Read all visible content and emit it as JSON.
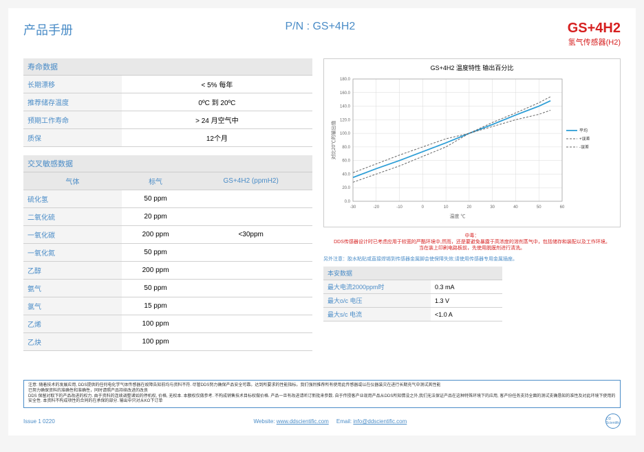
{
  "header": {
    "left": "产品手册",
    "mid": "P/N : GS+4H2",
    "model": "GS+4H2",
    "sub": "氢气传感器(H2)"
  },
  "lifeTable": {
    "title": "寿命数据",
    "rows": [
      {
        "label": "长期漂移",
        "value": "< 5% 每年"
      },
      {
        "label": "推荐储存温度",
        "value": "0ºC 到 20ºC"
      },
      {
        "label": "预期工作寿命",
        "value": "> 24 月空气中"
      },
      {
        "label": "质保",
        "value": "12个月"
      }
    ]
  },
  "crossTable": {
    "title": "交叉敏感数据",
    "headers": [
      "气体",
      "标气",
      "GS+4H2 (ppmH2)"
    ],
    "rows": [
      {
        "gas": "硫化氢",
        "std": "50 ppm",
        "resp": ""
      },
      {
        "gas": "二氧化硫",
        "std": "20 ppm",
        "resp": ""
      },
      {
        "gas": "一氧化碳",
        "std": "200 ppm",
        "resp": "<30ppm"
      },
      {
        "gas": "一氧化氮",
        "std": "50 ppm",
        "resp": ""
      },
      {
        "gas": "乙醇",
        "std": "200 ppm",
        "resp": ""
      },
      {
        "gas": "氨气",
        "std": "50   ppm",
        "resp": ""
      },
      {
        "gas": "氯气",
        "std": "15    ppm",
        "resp": ""
      },
      {
        "gas": "乙烯",
        "std": "100 ppm",
        "resp": ""
      },
      {
        "gas": "乙炔",
        "std": "100   ppm",
        "resp": ""
      }
    ]
  },
  "chart": {
    "title": "GS+4H2 温度特性 输出百分比",
    "xlabel": "温度 ℃",
    "ylabel": "对比20℃的输出值",
    "xlim": [
      -30,
      60
    ],
    "ylim": [
      0,
      180
    ],
    "xtick_step": 10,
    "ytick_step": 20,
    "plot_bg": "#ffffff",
    "grid_color": "#d9d9d9",
    "series": [
      {
        "name": "平均",
        "color": "#2e9ed6",
        "dash": "0",
        "width": 1.8,
        "points": [
          [
            -30,
            35
          ],
          [
            -20,
            48
          ],
          [
            -10,
            60
          ],
          [
            0,
            73
          ],
          [
            10,
            86
          ],
          [
            20,
            100
          ],
          [
            30,
            113
          ],
          [
            40,
            127
          ],
          [
            50,
            140
          ],
          [
            55,
            148
          ]
        ]
      },
      {
        "name": "+误差",
        "color": "#666666",
        "dash": "3,2",
        "width": 1,
        "points": [
          [
            -30,
            42
          ],
          [
            -20,
            55
          ],
          [
            -10,
            68
          ],
          [
            0,
            80
          ],
          [
            10,
            92
          ],
          [
            20,
            100
          ],
          [
            30,
            116
          ],
          [
            40,
            130
          ],
          [
            50,
            145
          ],
          [
            55,
            154
          ]
        ]
      },
      {
        "name": "-误差",
        "color": "#666666",
        "dash": "3,2",
        "width": 1,
        "points": [
          [
            -30,
            28
          ],
          [
            -20,
            40
          ],
          [
            -10,
            52
          ],
          [
            0,
            66
          ],
          [
            10,
            80
          ],
          [
            20,
            100
          ],
          [
            30,
            110
          ],
          [
            40,
            120
          ],
          [
            50,
            128
          ],
          [
            55,
            134
          ]
        ]
      }
    ],
    "legend": [
      "平均",
      "+误差",
      "-误差"
    ]
  },
  "redNote": {
    "l1": "中毒：",
    "l2": "DDS传感器设计时已考虑应用于较宽的严酷环境中,然而，还是要避免暴露于高浓度的溶剂蒸气中，包括储存和装配以及工作环境。",
    "l3": "当在装上印刷电路板前，先使用脱膜剂进行清洗。"
  },
  "blueNote": "另外注意：胶水粘贴或直接焊锡到传感器金属脚会使保障失效;请使用传感器专用金属插座。",
  "safeTable": {
    "title": "本安数据",
    "rows": [
      {
        "label": "最大电流2000ppm时",
        "value": "0.3 mA"
      },
      {
        "label": "最大o/c 电压",
        "value": "1.3 V"
      },
      {
        "label": "最大s/c 电流",
        "value": "<1.0 A"
      }
    ]
  },
  "disclaimer": {
    "p1": "注意: 随着技术的发展应用, DDS提供的任何电化学气体传感器在故障告知前均与资料不符. 尽管DDS努力确保产品安全可靠。达到所要求的性能指标。我们强烈推荐所有使用此传感器或以在仪器装灾在进行长期充气中测试其性能",
    "p2": "已努力确保资料的准确性和准确性，同时请照产品持续改进的改良",
    "p3": "DDS 保留对取下的产品改进的权力. 由于资料的连续调整诸如的停机权, 价格, 无权本. 本额权仅做参考. 不构成销售技术目标权做价格. 产品一旦有改进请听订新批来参数. 自于传授客产业现用产品从DDS所知情没之外,我们无法保证产品在这种特殊环境下的应用, 客产份任务支持全面的测试支确恳知的准性及对此环境下使用的安全性. 本资料不构成项性的合同的在承保的部分. 输出中只对从KO下订单"
  },
  "footer": {
    "issue": "Issue 1 0220",
    "website_label": "Website:",
    "website": "www.ddscientific.com",
    "email_label": "Email:",
    "email": "info@ddscientific.com",
    "logo": "DD Scientific"
  }
}
